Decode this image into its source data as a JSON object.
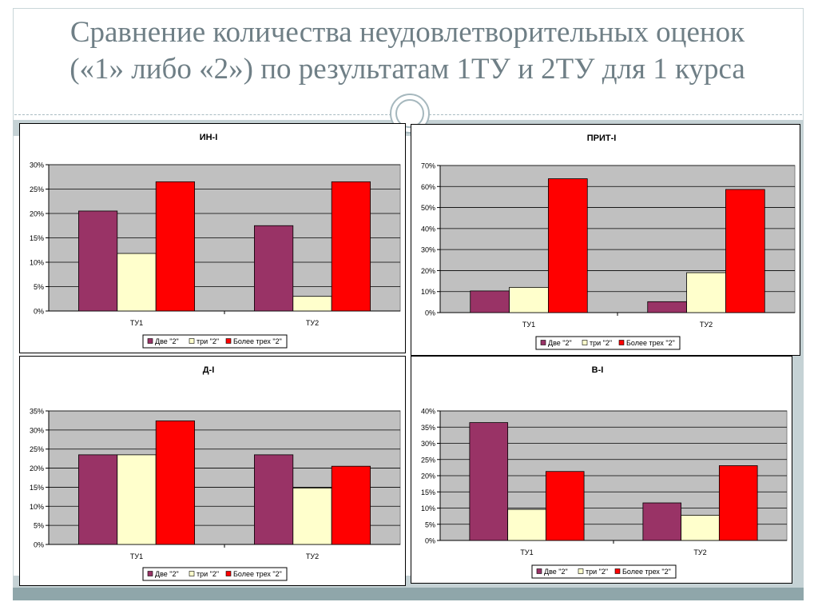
{
  "slide": {
    "title_line1": "Сравнение количества неудовлетворительных оценок",
    "title_line2": "(«1» либо «2») по результатам 1ТУ и 2ТУ для 1 курса"
  },
  "colors": {
    "series": [
      "#993366",
      "#ffffcc",
      "#ff0000"
    ],
    "plot_bg": "#c0c0c0"
  },
  "chart_data": [
    {
      "type": "bar",
      "title": "ИН-I",
      "categories": [
        "ТУ1",
        "ТУ2"
      ],
      "series": [
        {
          "name": "Две \"2\"",
          "values": [
            20.5,
            17.5
          ]
        },
        {
          "name": "три \"2\"",
          "values": [
            11.8,
            3.0
          ]
        },
        {
          "name": "Более трех \"2\"",
          "values": [
            26.5,
            26.5
          ]
        }
      ],
      "ylim": [
        0,
        30
      ],
      "yticks": [
        "0%",
        "5%",
        "10%",
        "15%",
        "20%",
        "25%",
        "30%"
      ],
      "grid": true,
      "legend": "bottom"
    },
    {
      "type": "bar",
      "title": "ПРИТ-I",
      "categories": [
        "ТУ1",
        "ТУ2"
      ],
      "series": [
        {
          "name": "Две \"2\"",
          "values": [
            10.3,
            5.2
          ]
        },
        {
          "name": "три \"2\"",
          "values": [
            12.0,
            19.0
          ]
        },
        {
          "name": "Более трех \"2\"",
          "values": [
            63.7,
            58.6
          ]
        }
      ],
      "ylim": [
        0,
        70
      ],
      "yticks": [
        "0%",
        "10%",
        "20%",
        "30%",
        "40%",
        "50%",
        "60%",
        "70%"
      ],
      "grid": true,
      "legend": "bottom"
    },
    {
      "type": "bar",
      "title": "Д-I",
      "categories": [
        "ТУ1",
        "ТУ2"
      ],
      "series": [
        {
          "name": "Две \"2\"",
          "values": [
            23.5,
            23.5
          ]
        },
        {
          "name": "три \"2\"",
          "values": [
            23.5,
            14.8
          ]
        },
        {
          "name": "Более трех \"2\"",
          "values": [
            32.4,
            20.5
          ]
        }
      ],
      "ylim": [
        0,
        35
      ],
      "yticks": [
        "0%",
        "5%",
        "10%",
        "15%",
        "20%",
        "25%",
        "30%",
        "35%"
      ],
      "grid": true,
      "legend": "bottom"
    },
    {
      "type": "bar",
      "title": "В-I",
      "categories": [
        "ТУ1",
        "ТУ2"
      ],
      "series": [
        {
          "name": "Две \"2\"",
          "values": [
            36.4,
            11.6
          ]
        },
        {
          "name": "три \"2\"",
          "values": [
            9.6,
            7.8
          ]
        },
        {
          "name": "Более трех \"2\"",
          "values": [
            21.3,
            23.1
          ]
        }
      ],
      "ylim": [
        0,
        40
      ],
      "yticks": [
        "0%",
        "5%",
        "10%",
        "15%",
        "20%",
        "25%",
        "30%",
        "35%",
        "40%"
      ],
      "grid": true,
      "legend": "bottom"
    }
  ]
}
